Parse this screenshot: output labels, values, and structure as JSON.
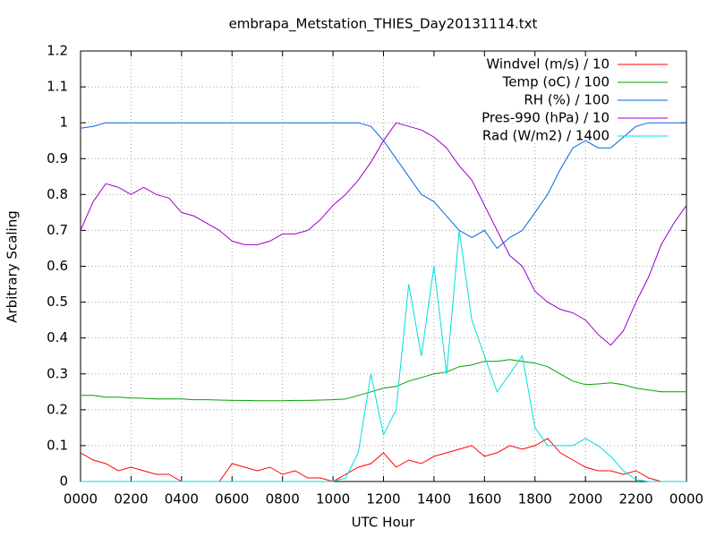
{
  "chart_data": {
    "type": "line",
    "title": "embrapa_Metstation_THIES_Day20131114.txt",
    "x_label": "UTC Hour",
    "y_label": "Arbitrary Scaling",
    "x": [
      0,
      0.5,
      1,
      1.5,
      2,
      2.5,
      3,
      3.5,
      4,
      4.5,
      5,
      5.5,
      6,
      6.5,
      7,
      7.5,
      8,
      8.5,
      9,
      9.5,
      10,
      10.5,
      11,
      11.5,
      12,
      12.5,
      13,
      13.5,
      14,
      14.5,
      15,
      15.5,
      16,
      16.5,
      17,
      17.5,
      18,
      18.5,
      19,
      19.5,
      20,
      20.5,
      21,
      21.5,
      22,
      22.5,
      23,
      23.5,
      24
    ],
    "series": [
      {
        "name": "Windvel (m/s) / 10",
        "color": "#ff0000",
        "values": [
          0.08,
          0.06,
          0.05,
          0.03,
          0.04,
          0.03,
          0.02,
          0.02,
          0,
          0,
          0,
          0,
          0.05,
          0.04,
          0.03,
          0.04,
          0.02,
          0.03,
          0.01,
          0.01,
          0,
          0.02,
          0.04,
          0.05,
          0.08,
          0.04,
          0.06,
          0.05,
          0.07,
          0.08,
          0.09,
          0.1,
          0.07,
          0.08,
          0.1,
          0.09,
          0.1,
          0.12,
          0.08,
          0.06,
          0.04,
          0.03,
          0.03,
          0.02,
          0.03,
          0.01,
          0,
          0,
          0
        ]
      },
      {
        "name": "Temp (oC) / 100",
        "color": "#00a000",
        "values": [
          0.24,
          0.24,
          0.235,
          0.235,
          0.233,
          0.232,
          0.23,
          0.23,
          0.23,
          0.228,
          0.228,
          0.227,
          0.226,
          0.226,
          0.225,
          0.225,
          0.225,
          0.226,
          0.226,
          0.227,
          0.228,
          0.23,
          0.24,
          0.25,
          0.26,
          0.265,
          0.28,
          0.29,
          0.3,
          0.305,
          0.32,
          0.325,
          0.335,
          0.335,
          0.34,
          0.335,
          0.33,
          0.32,
          0.3,
          0.28,
          0.27,
          0.272,
          0.275,
          0.27,
          0.26,
          0.255,
          0.25,
          0.25,
          0.25
        ]
      },
      {
        "name": "RH (%) / 100",
        "color": "#0066dd",
        "values": [
          0.985,
          0.99,
          1,
          1,
          1,
          1,
          1,
          1,
          1,
          1,
          1,
          1,
          1,
          1,
          1,
          1,
          1,
          1,
          1,
          1,
          1,
          1,
          1,
          0.99,
          0.95,
          0.9,
          0.85,
          0.8,
          0.78,
          0.74,
          0.7,
          0.68,
          0.7,
          0.65,
          0.68,
          0.7,
          0.75,
          0.8,
          0.87,
          0.93,
          0.95,
          0.93,
          0.93,
          0.96,
          0.99,
          1,
          1,
          1,
          1
        ]
      },
      {
        "name": "Pres-990 (hPa) / 10",
        "color": "#9900cc",
        "values": [
          0.7,
          0.78,
          0.83,
          0.82,
          0.8,
          0.82,
          0.8,
          0.79,
          0.75,
          0.74,
          0.72,
          0.7,
          0.67,
          0.66,
          0.66,
          0.67,
          0.69,
          0.69,
          0.7,
          0.73,
          0.77,
          0.8,
          0.84,
          0.89,
          0.95,
          1,
          0.99,
          0.98,
          0.96,
          0.93,
          0.88,
          0.84,
          0.77,
          0.7,
          0.63,
          0.6,
          0.53,
          0.5,
          0.48,
          0.47,
          0.45,
          0.41,
          0.38,
          0.42,
          0.5,
          0.57,
          0.66,
          0.72,
          0.77
        ]
      },
      {
        "name": "Rad (W/m2) / 1400",
        "color": "#00dddd",
        "values": [
          0,
          0,
          0,
          0,
          0,
          0,
          0,
          0,
          0,
          0,
          0,
          0,
          0,
          0,
          0,
          0,
          0,
          0,
          0,
          0,
          0,
          0.01,
          0.08,
          0.3,
          0.13,
          0.2,
          0.55,
          0.35,
          0.6,
          0.3,
          0.7,
          0.45,
          0.35,
          0.25,
          0.3,
          0.35,
          0.15,
          0.1,
          0.1,
          0.1,
          0.12,
          0.1,
          0.07,
          0.03,
          0.005,
          0,
          0,
          0,
          0
        ]
      }
    ],
    "xlim": [
      0,
      24
    ],
    "xticks": [
      {
        "value": 0,
        "label": "0000"
      },
      {
        "value": 2,
        "label": "0200"
      },
      {
        "value": 4,
        "label": "0400"
      },
      {
        "value": 6,
        "label": "0600"
      },
      {
        "value": 8,
        "label": "0800"
      },
      {
        "value": 10,
        "label": "1000"
      },
      {
        "value": 12,
        "label": "1200"
      },
      {
        "value": 14,
        "label": "1400"
      },
      {
        "value": 16,
        "label": "1600"
      },
      {
        "value": 18,
        "label": "1800"
      },
      {
        "value": 20,
        "label": "2000"
      },
      {
        "value": 22,
        "label": "2200"
      },
      {
        "value": 24,
        "label": "0000"
      }
    ],
    "ylim": [
      0,
      1.2
    ],
    "yticks": [
      0,
      0.1,
      0.2,
      0.3,
      0.4,
      0.5,
      0.6,
      0.7,
      0.8,
      0.9,
      1,
      1.1,
      1.2
    ],
    "grid": true,
    "legend": "top-right"
  }
}
